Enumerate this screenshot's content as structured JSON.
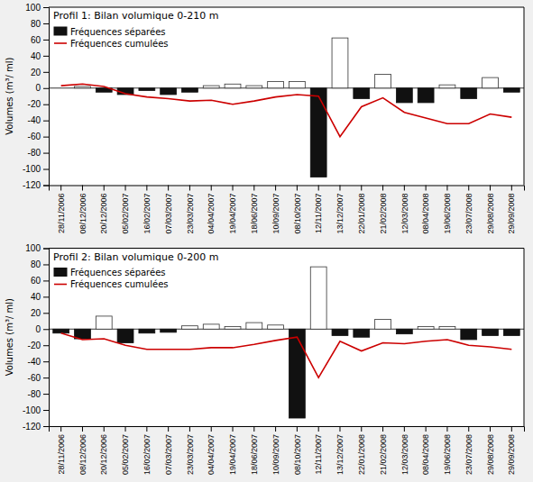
{
  "chart_data": [
    {
      "type": "bar",
      "title": "Profil 1: Bilan volumique 0-210 m",
      "y_label": "Volumes (m³/ ml)",
      "categories": [
        "28/11/2006",
        "08/12/2006",
        "20/12/2006",
        "05/02/2007",
        "16/02/2007",
        "07/03/2007",
        "23/03/2007",
        "04/04/2007",
        "19/04/2007",
        "18/06/2007",
        "10/09/2007",
        "08/10/2007",
        "12/11/2007",
        "13/12/2007",
        "22/01/2008",
        "21/02/2008",
        "12/03/2008",
        "08/04/2008",
        "19/06/2008",
        "23/07/2008",
        "29/08/2008",
        "29/09/2008"
      ],
      "series": [
        {
          "name": "Fréquences séparées",
          "type": "bar",
          "color": "#111111",
          "colors": [
            "#ffffff",
            "#ffffff",
            "#111111",
            "#111111",
            "#111111",
            "#111111",
            "#111111",
            "#ffffff",
            "#ffffff",
            "#ffffff",
            "#ffffff",
            "#ffffff",
            "#111111",
            "#ffffff",
            "#111111",
            "#ffffff",
            "#111111",
            "#111111",
            "#ffffff",
            "#111111",
            "#ffffff",
            "#111111"
          ],
          "values": [
            0,
            2,
            -5,
            -8,
            -3,
            -8,
            -5,
            3,
            5,
            3,
            8,
            8,
            -110,
            62,
            -13,
            17,
            -18,
            -18,
            4,
            -13,
            13,
            -5
          ]
        },
        {
          "name": "Fréquences cumulées",
          "type": "line",
          "color": "#cc0000",
          "values": [
            3,
            5,
            2,
            -7,
            -11,
            -13,
            -16,
            -15,
            -20,
            -16,
            -11,
            -8,
            -10,
            -60,
            -23,
            -12,
            -30,
            -37,
            -44,
            -44,
            -32,
            -36
          ]
        }
      ],
      "ylim": [
        -120,
        100
      ],
      "yticks": [
        -120,
        -100,
        -80,
        -60,
        -40,
        -20,
        0,
        20,
        40,
        60,
        80,
        100
      ],
      "grid": false,
      "legend": "top-left"
    },
    {
      "type": "bar",
      "title": "Profil 2: Bilan volumique 0-200 m",
      "y_label": "Volumes (m³/ ml)",
      "categories": [
        "28/11/2006",
        "08/12/2006",
        "20/12/2006",
        "05/02/2007",
        "16/02/2007",
        "07/03/2007",
        "23/03/2007",
        "04/04/2007",
        "19/04/2007",
        "18/06/2007",
        "10/09/2007",
        "08/10/2007",
        "12/11/2007",
        "13/12/2007",
        "22/01/2008",
        "21/02/2008",
        "12/03/2008",
        "08/04/2008",
        "19/06/2008",
        "23/07/2008",
        "29/08/2008",
        "29/09/2008"
      ],
      "series": [
        {
          "name": "Fréquences séparées",
          "type": "bar",
          "color": "#111111",
          "colors": [
            "#111111",
            "#111111",
            "#ffffff",
            "#111111",
            "#111111",
            "#111111",
            "#ffffff",
            "#ffffff",
            "#ffffff",
            "#ffffff",
            "#ffffff",
            "#111111",
            "#ffffff",
            "#111111",
            "#111111",
            "#ffffff",
            "#111111",
            "#ffffff",
            "#ffffff",
            "#111111",
            "#111111",
            "#111111"
          ],
          "values": [
            -5,
            -12,
            16,
            -17,
            -5,
            -4,
            4,
            6,
            3,
            8,
            5,
            -110,
            77,
            -8,
            -10,
            12,
            -6,
            3,
            3,
            -13,
            -8,
            -8
          ]
        },
        {
          "name": "Fréquences cumulées",
          "type": "line",
          "color": "#cc0000",
          "values": [
            -5,
            -13,
            -12,
            -20,
            -25,
            -25,
            -25,
            -23,
            -23,
            -19,
            -14,
            -10,
            -60,
            -15,
            -27,
            -17,
            -18,
            -15,
            -13,
            -20,
            -22,
            -25
          ]
        }
      ],
      "ylim": [
        -120,
        100
      ],
      "yticks": [
        -120,
        -100,
        -80,
        -60,
        -40,
        -20,
        0,
        20,
        40,
        60,
        80,
        100
      ],
      "grid": false,
      "legend": "top-left"
    }
  ]
}
